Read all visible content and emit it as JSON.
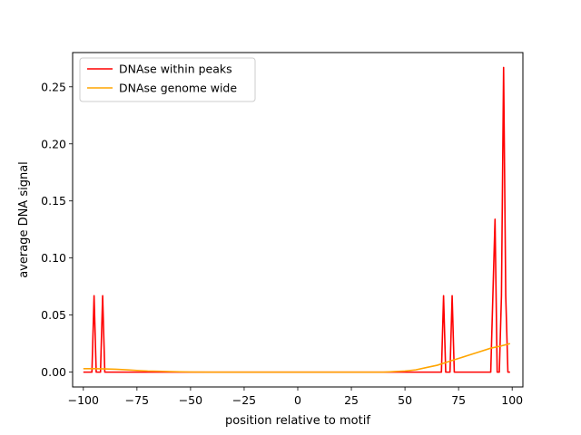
{
  "chart_data": {
    "type": "line",
    "title": "",
    "xlabel": "position relative to motif",
    "ylabel": "average DNA signal",
    "xlim": [
      -105,
      105
    ],
    "ylim": [
      -0.013,
      0.28
    ],
    "x_ticks": [
      -100,
      -75,
      -50,
      -25,
      0,
      25,
      50,
      75,
      100
    ],
    "y_ticks": [
      0.0,
      0.05,
      0.1,
      0.15,
      0.2,
      0.25
    ],
    "x_tick_labels": [
      "−100",
      "−75",
      "−50",
      "−25",
      "0",
      "25",
      "50",
      "75",
      "100"
    ],
    "y_tick_labels": [
      "0.00",
      "0.05",
      "0.10",
      "0.15",
      "0.20",
      "0.25"
    ],
    "grid": false,
    "legend_position": "top-left",
    "series": [
      {
        "name": "DNAse within peaks",
        "color": "#ff0000",
        "points": [
          [
            -100,
            0
          ],
          [
            -96,
            0
          ],
          [
            -95,
            0.067
          ],
          [
            -94,
            0
          ],
          [
            -92,
            0
          ],
          [
            -91,
            0.067
          ],
          [
            -90,
            0
          ],
          [
            0,
            0
          ],
          [
            67,
            0
          ],
          [
            68,
            0.067
          ],
          [
            69,
            0
          ],
          [
            71,
            0
          ],
          [
            72,
            0.067
          ],
          [
            73,
            0
          ],
          [
            90,
            0
          ],
          [
            91,
            0.067
          ],
          [
            92,
            0.134
          ],
          [
            93,
            0
          ],
          [
            94,
            0
          ],
          [
            95,
            0.067
          ],
          [
            96,
            0.267
          ],
          [
            97,
            0.067
          ],
          [
            98,
            0
          ],
          [
            99,
            0
          ]
        ]
      },
      {
        "name": "DNAse genome wide",
        "color": "#ffa500",
        "points": [
          [
            -100,
            0.003
          ],
          [
            -95,
            0.003
          ],
          [
            -90,
            0.0028
          ],
          [
            -85,
            0.0025
          ],
          [
            -80,
            0.002
          ],
          [
            -75,
            0.0015
          ],
          [
            -70,
            0.001
          ],
          [
            -65,
            0.0008
          ],
          [
            -60,
            0.0005
          ],
          [
            -55,
            0.0003
          ],
          [
            -50,
            0.0001
          ],
          [
            -40,
            0
          ],
          [
            0,
            0
          ],
          [
            40,
            0
          ],
          [
            45,
            0.0005
          ],
          [
            50,
            0.001
          ],
          [
            55,
            0.002
          ],
          [
            60,
            0.004
          ],
          [
            65,
            0.006
          ],
          [
            70,
            0.009
          ],
          [
            75,
            0.012
          ],
          [
            80,
            0.015
          ],
          [
            85,
            0.018
          ],
          [
            90,
            0.021
          ],
          [
            95,
            0.023
          ],
          [
            99,
            0.025
          ]
        ]
      }
    ]
  }
}
